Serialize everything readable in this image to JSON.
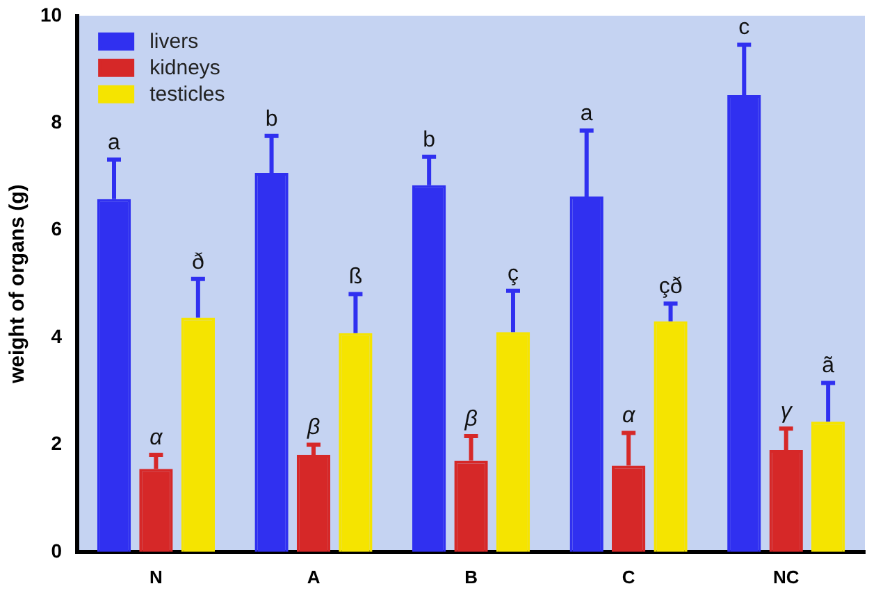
{
  "chart_data": {
    "type": "bar",
    "ylabel": "weight of organs (g)",
    "categories": [
      "N",
      "A",
      "B",
      "C",
      "NC"
    ],
    "series": [
      {
        "name": "livers",
        "color": "#3030f0",
        "values": [
          6.58,
          7.07,
          6.84,
          6.63,
          8.52
        ],
        "errors": [
          0.74,
          0.69,
          0.53,
          1.23,
          0.94
        ],
        "value_labels": [
          "a",
          "b",
          "b",
          "a",
          "c"
        ]
      },
      {
        "name": "kidneys",
        "color": "#d62828",
        "values": [
          1.55,
          1.81,
          1.7,
          1.61,
          1.9
        ],
        "errors": [
          0.26,
          0.19,
          0.46,
          0.61,
          0.4
        ],
        "value_labels": [
          "α",
          "β",
          "β",
          "α",
          "γ"
        ]
      },
      {
        "name": "testicles",
        "color": "#f5e400",
        "values": [
          4.37,
          4.08,
          4.1,
          4.3,
          2.43
        ],
        "errors": [
          0.72,
          0.73,
          0.77,
          0.33,
          0.72
        ],
        "value_labels": [
          "ð",
          "ß",
          "ç",
          "çð",
          "ã"
        ]
      }
    ],
    "ylim": [
      0,
      10
    ],
    "yticks": [
      0,
      2,
      4,
      6,
      8,
      10
    ],
    "grid": false,
    "legend": "top left"
  }
}
